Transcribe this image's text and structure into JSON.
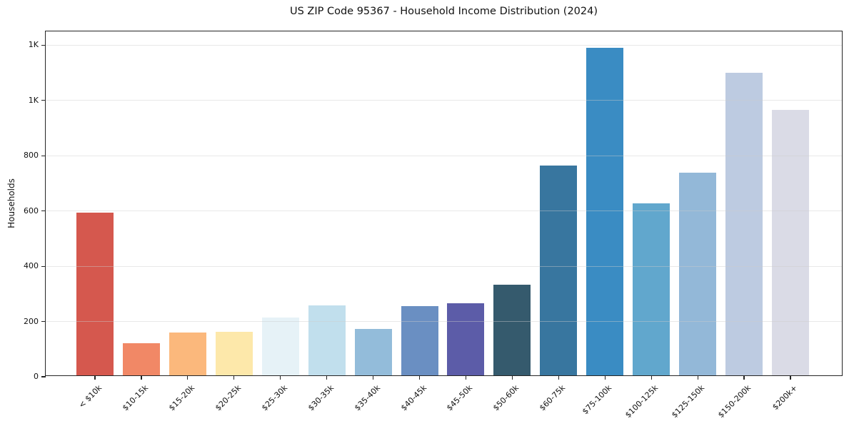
{
  "chart_data": {
    "type": "bar",
    "title": "US ZIP Code 95367 - Household Income Distribution (2024)",
    "xlabel": "",
    "ylabel": "Households",
    "categories": [
      "< $10k",
      "$10-15k",
      "$15-20k",
      "$20-25k",
      "$25-30k",
      "$30-35k",
      "$35-40k",
      "$40-45k",
      "$45-50k",
      "$50-60k",
      "$60-75k",
      "$75-100k",
      "$100-125k",
      "$125-150k",
      "$150-200k",
      "$200k+"
    ],
    "values": [
      590,
      115,
      155,
      158,
      210,
      252,
      167,
      250,
      260,
      327,
      760,
      1185,
      622,
      733,
      1096,
      962
    ],
    "bar_colors": [
      "#d5584e",
      "#f18866",
      "#fbb87c",
      "#fde8aa",
      "#e6f2f7",
      "#c1dfed",
      "#93bcda",
      "#6a8fc2",
      "#5c5ca8",
      "#355a6d",
      "#38769f",
      "#3a8cc3",
      "#61a7cd",
      "#93b8d8",
      "#bdcbe1",
      "#dadbe6"
    ],
    "ylim": [
      0,
      1250
    ],
    "yticks": [
      {
        "value": 0,
        "label": "0"
      },
      {
        "value": 200,
        "label": "200"
      },
      {
        "value": 400,
        "label": "400"
      },
      {
        "value": 600,
        "label": "600"
      },
      {
        "value": 800,
        "label": "800"
      },
      {
        "value": 1000,
        "label": "1K"
      },
      {
        "value": 1200,
        "label": "1K"
      }
    ],
    "grid": "horizontal",
    "legend_position": "none"
  },
  "style_colors": {
    "background": "#ffffff",
    "spine": "#252525",
    "grid": "#cbcbcb",
    "text": "#111111"
  }
}
